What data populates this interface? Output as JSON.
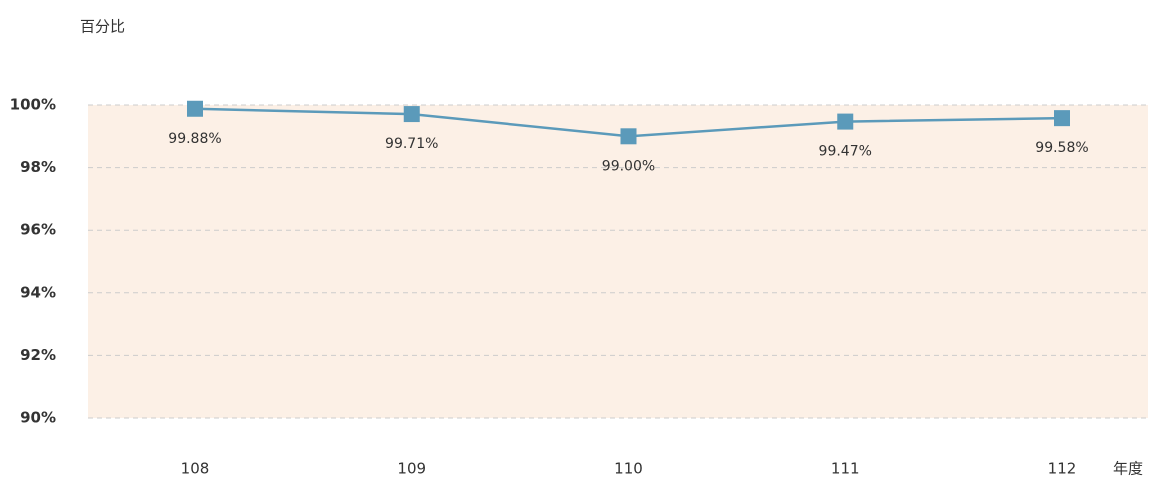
{
  "chart_data": {
    "type": "line",
    "ylabel": "百分比",
    "xlabel": "年度",
    "categories": [
      "108",
      "109",
      "110",
      "111",
      "112"
    ],
    "series": [
      {
        "color": "#5b9aba",
        "values": [
          99.88,
          99.71,
          99.0,
          99.47,
          99.58
        ],
        "value_labels": [
          "99.88%",
          "99.71%",
          "99.00%",
          "99.47%",
          "99.58%"
        ]
      }
    ],
    "ylim": [
      90,
      100
    ],
    "yticks": [
      {
        "value": 90,
        "label": "90%"
      },
      {
        "value": 92,
        "label": "92%"
      },
      {
        "value": 94,
        "label": "94%"
      },
      {
        "value": 96,
        "label": "96%"
      },
      {
        "value": 98,
        "label": "98%"
      },
      {
        "value": 100,
        "label": "100%"
      }
    ],
    "grid": true,
    "background": "#fcf0e6"
  }
}
